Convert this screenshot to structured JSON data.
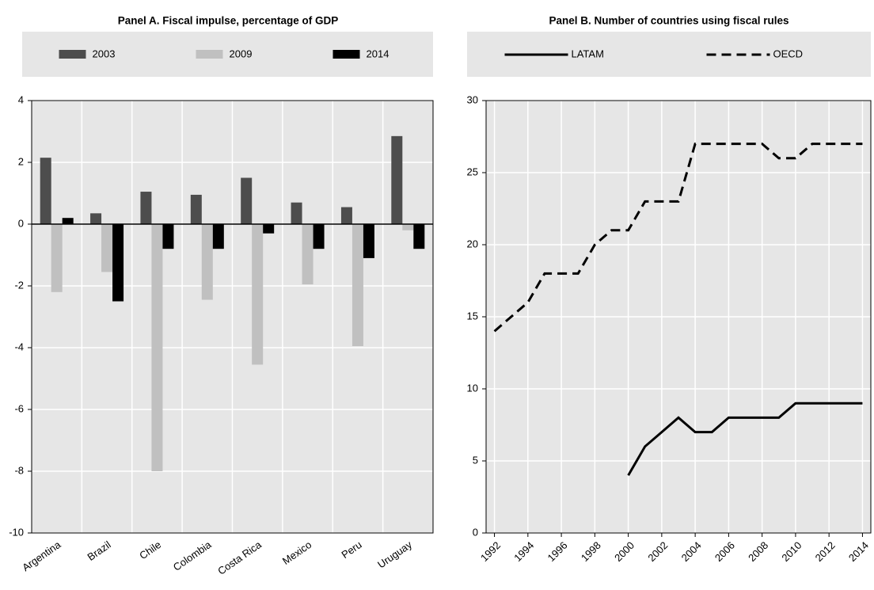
{
  "chart_data": [
    {
      "type": "bar",
      "title": "Panel A.  Fiscal impulse, percentage of GDP",
      "categories": [
        "Argentina",
        "Brazil",
        "Chile",
        "Colombia",
        "Costa Rica",
        "Mexico",
        "Peru",
        "Uruguay"
      ],
      "series": [
        {
          "name": "2003",
          "color": "#4d4d4d",
          "values": [
            2.15,
            0.35,
            1.05,
            0.95,
            1.5,
            0.7,
            0.55,
            2.85
          ]
        },
        {
          "name": "2009",
          "color": "#c0c0c0",
          "values": [
            -2.2,
            -1.55,
            -8.0,
            -2.45,
            -4.55,
            -1.95,
            -3.95,
            -0.2
          ]
        },
        {
          "name": "2014",
          "color": "#000000",
          "values": [
            0.2,
            -2.5,
            -0.8,
            -0.8,
            -0.3,
            -0.8,
            -1.1,
            -0.8
          ]
        }
      ],
      "ylim": [
        -10,
        4
      ],
      "yticks": [
        -10,
        -8,
        -6,
        -4,
        -2,
        0,
        2,
        4
      ],
      "grid": true,
      "legend": "top"
    },
    {
      "type": "line",
      "title": "Panel B. Number of countries using fiscal rules",
      "x": [
        1992,
        1993,
        1994,
        1995,
        1996,
        1997,
        1998,
        1999,
        2000,
        2001,
        2002,
        2003,
        2004,
        2005,
        2006,
        2007,
        2008,
        2009,
        2010,
        2011,
        2012,
        2013,
        2014
      ],
      "series": [
        {
          "name": "LATAM",
          "color": "#000000",
          "dash": "solid",
          "values": [
            null,
            null,
            null,
            null,
            null,
            null,
            null,
            null,
            4,
            6,
            7,
            8,
            7,
            7,
            8,
            8,
            8,
            8,
            9,
            9,
            9,
            9,
            9
          ]
        },
        {
          "name": "OECD",
          "color": "#000000",
          "dash": "dashed",
          "values": [
            14,
            15,
            16,
            18,
            18,
            18,
            20,
            21,
            21,
            23,
            23,
            23,
            27,
            27,
            27,
            27,
            27,
            26,
            26,
            27,
            27,
            27,
            27
          ]
        }
      ],
      "xlim": [
        1991.5,
        2014.5
      ],
      "xticks": [
        1992,
        1994,
        1996,
        1998,
        2000,
        2002,
        2004,
        2006,
        2008,
        2010,
        2012,
        2014
      ],
      "ylim": [
        0,
        30
      ],
      "yticks": [
        0,
        5,
        10,
        15,
        20,
        25,
        30
      ],
      "grid": true,
      "legend": "top"
    }
  ]
}
